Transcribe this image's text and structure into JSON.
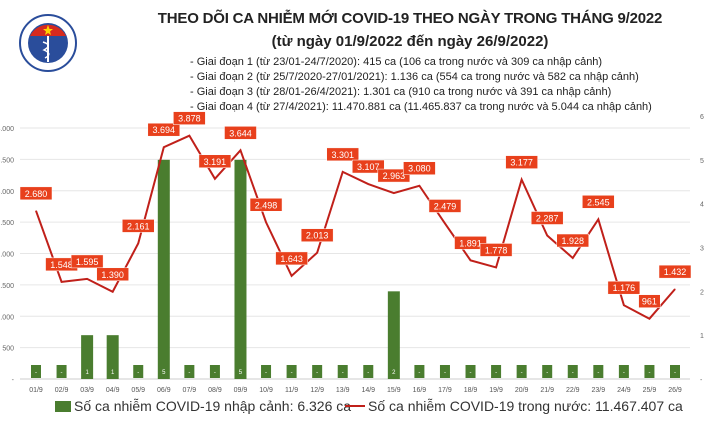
{
  "header": {
    "title": "THEO DÕI CA NHIỄM MỚI COVID-19 THEO NGÀY TRONG THÁNG 9/2022",
    "subtitle": "(từ ngày 01/9/2022 đến ngày 26/9/2022)",
    "notes": [
      "- Giai đoạn 1 (từ 23/01-24/7/2020): 415 ca (106 ca trong nước và 309 ca nhập cảnh)",
      "- Giai đoạn 2 (từ 25/7/2020-27/01/2021): 1.136 ca (554 ca trong nước và 582 ca nhập cảnh)",
      "- Giai đoạn 3 (từ 28/01-26/4/2021): 1.301 ca (910 ca trong nước và 391 ca nhập cảnh)",
      "- Giai đoạn 4 (từ 27/4/2021): 11.470.881 ca (11.465.837 ca trong nước và 5.044 ca nhập cảnh)"
    ],
    "logo_text": "BỘ Y TẾ · MINISTRY OF HEALTH"
  },
  "chart_data": {
    "type": "bar+line",
    "categories": [
      "01/9",
      "02/9",
      "03/9",
      "04/9",
      "05/9",
      "06/9",
      "07/9",
      "08/9",
      "09/9",
      "10/9",
      "11/9",
      "12/9",
      "13/9",
      "14/9",
      "15/9",
      "16/9",
      "17/9",
      "18/9",
      "19/9",
      "20/9",
      "21/9",
      "22/9",
      "23/9",
      "24/9",
      "25/9",
      "26/9"
    ],
    "series": [
      {
        "name": "Số ca nhiễm COVID-19 nhập cảnh: 6.326 ca",
        "type": "bar",
        "axis": "right",
        "color": "#4a7d2f",
        "values": [
          0,
          0,
          1,
          1,
          0,
          5,
          0,
          0,
          5,
          0,
          0,
          0,
          0,
          0,
          2,
          0,
          0,
          0,
          0,
          0,
          0,
          0,
          0,
          0,
          0,
          0
        ],
        "labels": [
          "-",
          "-",
          "1",
          "1",
          "-",
          "5",
          "-",
          "-",
          "5",
          "-",
          "-",
          "-",
          "-",
          "-",
          "2",
          "-",
          "-",
          "-",
          "-",
          "-",
          "-",
          "-",
          "-",
          "-",
          "-",
          "-"
        ]
      },
      {
        "name": "Số ca nhiễm COVID-19 trong nước: 11.467.407 ca",
        "type": "line",
        "axis": "left",
        "color": "#c0201a",
        "label_color": "#e8401c",
        "values": [
          2680,
          1548,
          1595,
          1390,
          2161,
          3694,
          3878,
          3191,
          3644,
          2498,
          1643,
          2013,
          3301,
          3107,
          2963,
          3080,
          2479,
          1891,
          1778,
          3177,
          2287,
          1928,
          2545,
          1176,
          961,
          1432
        ],
        "labels": [
          "2.680",
          "1.548",
          "1.595",
          "1.390",
          "2.161",
          "3.694",
          "3.878",
          "3.191",
          "3.644",
          "2.498",
          "1.643",
          "2.013",
          "3.301",
          "3.107",
          "2.963",
          "3.080",
          "2.479",
          "1.891",
          "1.778",
          "3.177",
          "2.287",
          "1.928",
          "2.545",
          "1.176",
          "961",
          "1.432"
        ]
      }
    ],
    "left_axis": {
      "range": [
        0,
        4000
      ],
      "ticks": [
        "-",
        "500",
        "1.000",
        "1.500",
        "2.000",
        "2.500",
        "3.000",
        "3.500",
        "4.000"
      ]
    },
    "right_axis": {
      "range": [
        0,
        6
      ],
      "ticks": [
        "-",
        "1",
        "2",
        "3",
        "4",
        "5",
        "6"
      ]
    },
    "grid": true,
    "legend": "bottom"
  }
}
